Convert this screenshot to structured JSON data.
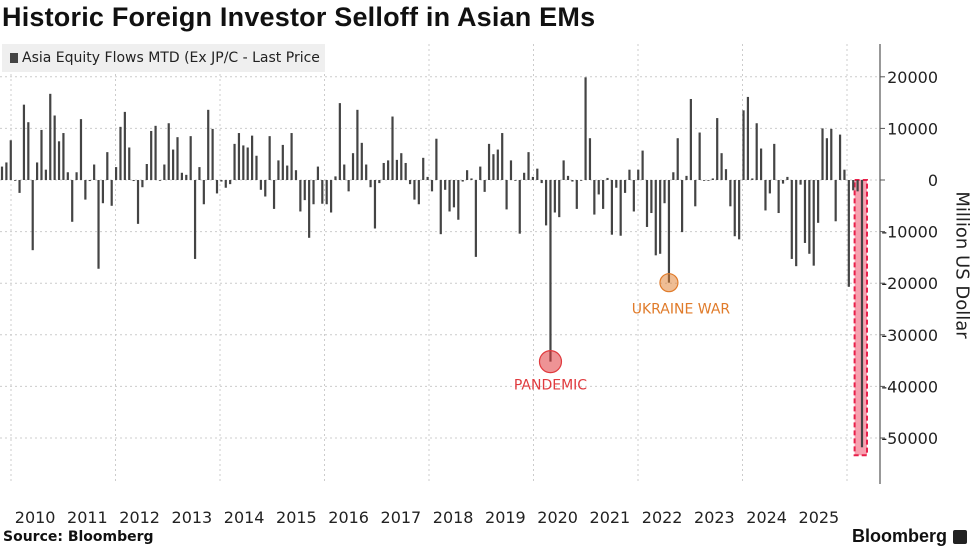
{
  "title": "Historic Foreign Investor Selloff in Asian EMs",
  "source": "Source: Bloomberg",
  "brand": "Bloomberg",
  "colors": {
    "bar": "#444444",
    "highlight": "#e8204a",
    "highlight_fill": "#f7a1b0",
    "pandemic": "#e03a3e",
    "ukraine": "#e07b2a",
    "grid": "#cccccc"
  },
  "chart_data": {
    "type": "bar",
    "title": "Historic Foreign Investor Selloff in Asian EMs",
    "legend": "Asia Equity Flows MTD (Ex JP/C - Last Price",
    "legend_position": "top-left",
    "ylabel": "Million US Dollar",
    "xlabel": "",
    "frequency": "monthly",
    "ylim": [
      -58000,
      26000
    ],
    "yticks": [
      20000,
      10000,
      0,
      -10000,
      -20000,
      -30000,
      -40000,
      -50000
    ],
    "xticks": [
      "2010",
      "2011",
      "2012",
      "2013",
      "2014",
      "2015",
      "2016",
      "2017",
      "2018",
      "2019",
      "2020",
      "2021",
      "2022",
      "2023",
      "2024",
      "2025"
    ],
    "grid": true,
    "values": [
      2600,
      3400,
      7700,
      0,
      -2500,
      14600,
      11200,
      -13600,
      3400,
      9700,
      2000,
      16700,
      12500,
      7500,
      9100,
      1500,
      -8100,
      1500,
      11800,
      -3800,
      -200,
      3000,
      -17200,
      -4500,
      5400,
      -5000,
      2500,
      10300,
      13200,
      6300,
      -200,
      -8500,
      -1400,
      3100,
      9500,
      10500,
      0,
      3000,
      11000,
      5900,
      8300,
      1400,
      1000,
      8500,
      -15300,
      2500,
      -4700,
      13600,
      9900,
      -2600,
      -300,
      -1500,
      -800,
      7000,
      9100,
      6700,
      6300,
      8600,
      4700,
      -1900,
      -3200,
      8500,
      -5600,
      3800,
      6800,
      2800,
      9100,
      1900,
      -6100,
      -3900,
      -11200,
      -4700,
      2600,
      -4600,
      -4700,
      -6300,
      700,
      14900,
      3000,
      -2200,
      5200,
      13600,
      7200,
      3000,
      -1400,
      -9400,
      -600,
      3300,
      3800,
      12300,
      3900,
      5200,
      3300,
      -800,
      -3800,
      -4700,
      4300,
      600,
      -2200,
      8000,
      -10500,
      -1900,
      -6100,
      -5300,
      -7700,
      -300,
      1900,
      300,
      -14900,
      2600,
      -2300,
      7000,
      5000,
      5900,
      9100,
      -5700,
      3800,
      0,
      -10400,
      1400,
      5400,
      600,
      2200,
      -600,
      -8800,
      -35200,
      -6300,
      -7200,
      3800,
      800,
      -300,
      -5600,
      0,
      19900,
      8100,
      -6700,
      -2800,
      -5600,
      400,
      -10600,
      -1500,
      -10800,
      -2500,
      2000,
      -6100,
      2000,
      5700,
      -9100,
      -6400,
      -14600,
      -14300,
      -4500,
      -19900,
      1500,
      8100,
      -10100,
      800,
      15700,
      -5100,
      9200,
      0,
      0,
      300,
      12000,
      5200,
      2100,
      -5100,
      -10900,
      -11500,
      13500,
      16100,
      300,
      11000,
      6100,
      -5900,
      -2600,
      7000,
      -6400,
      -700,
      600,
      -15300,
      -16700,
      -900,
      -12200,
      -14300,
      -16600,
      -8300,
      10000,
      8100,
      9900,
      -8000,
      8800,
      2000,
      -20700,
      -2000,
      -2200,
      -51800
    ],
    "annotations": [
      {
        "label": "PANDEMIC",
        "index": 125,
        "value": -35200,
        "color": "#e03a3e"
      },
      {
        "label": "UKRAINE WAR",
        "index": 152,
        "value": -19900,
        "color": "#e07b2a"
      }
    ],
    "highlight": {
      "from_index": 195,
      "to_index": 196,
      "value": -51800
    }
  }
}
